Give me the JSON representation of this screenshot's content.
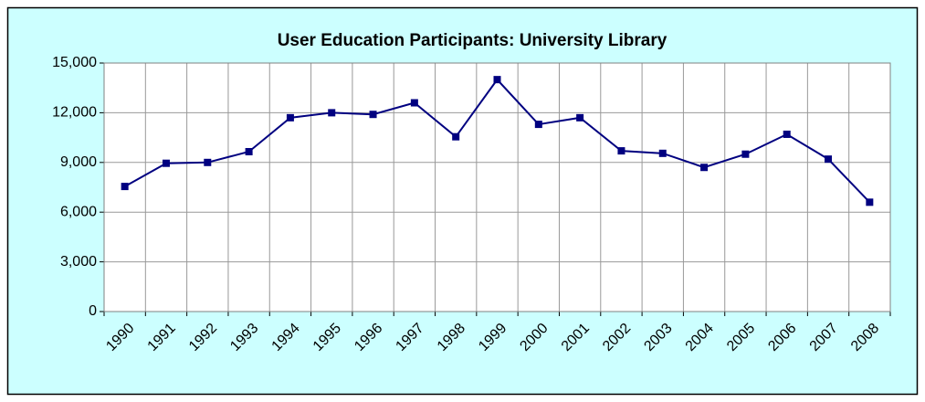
{
  "chart_data": {
    "type": "line",
    "title": "User Education Participants:  University Library",
    "categories": [
      "1990",
      "1991",
      "1992",
      "1993",
      "1994",
      "1995",
      "1996",
      "1997",
      "1998",
      "1999",
      "2000",
      "2001",
      "2002",
      "2003",
      "2004",
      "2005",
      "2006",
      "2007",
      "2008"
    ],
    "values": [
      7550,
      8950,
      9000,
      9650,
      11700,
      12000,
      11900,
      12600,
      10550,
      14000,
      11300,
      11700,
      9700,
      9550,
      8700,
      9500,
      10700,
      9200,
      6600
    ],
    "color": "#000080",
    "ylim": [
      0,
      15000
    ],
    "yticks": [
      0,
      {
        "value": 3000,
        "label": "3,000"
      },
      {
        "value": 6000,
        "label": "6,000"
      },
      {
        "value": 9000,
        "label": "9,000"
      },
      {
        "value": 12000,
        "label": "12,000"
      },
      {
        "value": 15000,
        "label": "15,000"
      }
    ],
    "grid": true
  }
}
